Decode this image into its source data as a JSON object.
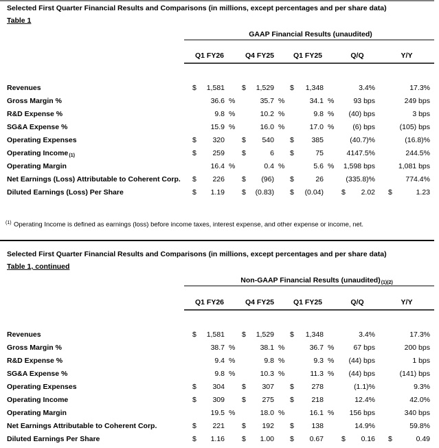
{
  "sections": [
    {
      "title": "Selected First Quarter Financial Results and Comparisons (in millions, except percentages and per share data)",
      "table_label": "Table 1",
      "group_header": "GAAP Financial Results (unaudited)",
      "columns": [
        "Q1 FY26",
        "Q4 FY25",
        "Q1 FY25",
        "Q/Q",
        "Y/Y"
      ],
      "rows": [
        {
          "label": "Revenues",
          "cells": [
            {
              "currency": "$",
              "value": "1,581"
            },
            {
              "currency": "$",
              "value": "1,529"
            },
            {
              "currency": "$",
              "value": "1,348"
            },
            {
              "value": "3.4%"
            },
            {
              "value": "17.3%"
            }
          ]
        },
        {
          "label": "Gross Margin %",
          "cells": [
            {
              "value": "36.6",
              "suffix": "%"
            },
            {
              "value": "35.7",
              "suffix": "%"
            },
            {
              "value": "34.1",
              "suffix": "%"
            },
            {
              "value": "93 bps"
            },
            {
              "value": "249 bps"
            }
          ]
        },
        {
          "label": "R&D Expense %",
          "cells": [
            {
              "value": "9.8",
              "suffix": "%"
            },
            {
              "value": "10.2",
              "suffix": "%"
            },
            {
              "value": "9.8",
              "suffix": "%"
            },
            {
              "value": "(40) bps"
            },
            {
              "value": "3 bps"
            }
          ]
        },
        {
          "label": "SG&A Expense %",
          "cells": [
            {
              "value": "15.9",
              "suffix": "%"
            },
            {
              "value": "16.0",
              "suffix": "%"
            },
            {
              "value": "17.0",
              "suffix": "%"
            },
            {
              "value": "(6) bps"
            },
            {
              "value": "(105) bps"
            }
          ]
        },
        {
          "label": "Operating Expenses",
          "cells": [
            {
              "currency": "$",
              "value": "320"
            },
            {
              "currency": "$",
              "value": "540"
            },
            {
              "currency": "$",
              "value": "385"
            },
            {
              "value": "(40.7)%"
            },
            {
              "value": "(16.8)%"
            }
          ]
        },
        {
          "label": "Operating Income",
          "label_note": "(1)",
          "cells": [
            {
              "currency": "$",
              "value": "259"
            },
            {
              "currency": "$",
              "value": "6"
            },
            {
              "currency": "$",
              "value": "75"
            },
            {
              "value": "4147.5%"
            },
            {
              "value": "244.5%"
            }
          ]
        },
        {
          "label": "Operating Margin",
          "cells": [
            {
              "value": "16.4",
              "suffix": "%"
            },
            {
              "value": "0.4",
              "suffix": "%"
            },
            {
              "value": "5.6",
              "suffix": "%"
            },
            {
              "value": "1,598 bps"
            },
            {
              "value": "1,081 bps"
            }
          ]
        },
        {
          "label": "Net Earnings (Loss) Attributable to Coherent Corp.",
          "cells": [
            {
              "currency": "$",
              "value": "226"
            },
            {
              "currency": "$",
              "value": "(96)"
            },
            {
              "currency": "$",
              "value": "26"
            },
            {
              "value": "(335.8)%"
            },
            {
              "value": "774.4%"
            }
          ]
        },
        {
          "label": "Diluted Earnings (Loss) Per Share",
          "cells": [
            {
              "currency": "$",
              "value": "1.19"
            },
            {
              "currency": "$",
              "value": "(0.83)"
            },
            {
              "currency": "$",
              "value": "(0.04)"
            },
            {
              "currency": "$",
              "value": "2.02"
            },
            {
              "currency": "$",
              "value": "1.23"
            }
          ]
        }
      ]
    },
    {
      "title": "Selected First Quarter Financial Results and Comparisons (in millions, except percentages and per share data)",
      "table_label": "Table 1, continued",
      "group_header": "Non-GAAP Financial Results (unaudited)",
      "group_note": "(1)(2)",
      "columns": [
        "Q1 FY26",
        "Q4 FY25",
        "Q1 FY25",
        "Q/Q",
        "Y/Y"
      ],
      "rows": [
        {
          "label": "Revenues",
          "cells": [
            {
              "currency": "$",
              "value": "1,581"
            },
            {
              "currency": "$",
              "value": "1,529"
            },
            {
              "currency": "$",
              "value": "1,348"
            },
            {
              "value": "3.4%"
            },
            {
              "value": "17.3%"
            }
          ]
        },
        {
          "label": "Gross Margin %",
          "cells": [
            {
              "value": "38.7",
              "suffix": "%"
            },
            {
              "value": "38.1",
              "suffix": "%"
            },
            {
              "value": "36.7",
              "suffix": "%"
            },
            {
              "value": "67 bps"
            },
            {
              "value": "200 bps"
            }
          ]
        },
        {
          "label": "R&D Expense %",
          "cells": [
            {
              "value": "9.4",
              "suffix": "%"
            },
            {
              "value": "9.8",
              "suffix": "%"
            },
            {
              "value": "9.3",
              "suffix": "%"
            },
            {
              "value": "(44) bps"
            },
            {
              "value": "1 bps"
            }
          ]
        },
        {
          "label": "SG&A Expense %",
          "cells": [
            {
              "value": "9.8",
              "suffix": "%"
            },
            {
              "value": "10.3",
              "suffix": "%"
            },
            {
              "value": "11.3",
              "suffix": "%"
            },
            {
              "value": "(44) bps"
            },
            {
              "value": "(141) bps"
            }
          ]
        },
        {
          "label": "Operating Expenses",
          "cells": [
            {
              "currency": "$",
              "value": "304"
            },
            {
              "currency": "$",
              "value": "307"
            },
            {
              "currency": "$",
              "value": "278"
            },
            {
              "value": "(1.1)%"
            },
            {
              "value": "9.3%"
            }
          ]
        },
        {
          "label": "Operating Income",
          "cells": [
            {
              "currency": "$",
              "value": "309"
            },
            {
              "currency": "$",
              "value": "275"
            },
            {
              "currency": "$",
              "value": "218"
            },
            {
              "value": "12.4%"
            },
            {
              "value": "42.0%"
            }
          ]
        },
        {
          "label": "Operating Margin",
          "cells": [
            {
              "value": "19.5",
              "suffix": "%"
            },
            {
              "value": "18.0",
              "suffix": "%"
            },
            {
              "value": "16.1",
              "suffix": "%"
            },
            {
              "value": "156 bps"
            },
            {
              "value": "340 bps"
            }
          ]
        },
        {
          "label": "Net Earnings Attributable to Coherent Corp.",
          "cells": [
            {
              "currency": "$",
              "value": "221"
            },
            {
              "currency": "$",
              "value": "192"
            },
            {
              "currency": "$",
              "value": "138"
            },
            {
              "value": "14.9%"
            },
            {
              "value": "59.8%"
            }
          ]
        },
        {
          "label": "Diluted Earnings Per Share",
          "cells": [
            {
              "currency": "$",
              "value": "1.16"
            },
            {
              "currency": "$",
              "value": "1.00"
            },
            {
              "currency": "$",
              "value": "0.67"
            },
            {
              "currency": "$",
              "value": "0.16"
            },
            {
              "currency": "$",
              "value": "0.49"
            }
          ]
        }
      ]
    }
  ],
  "footnote": {
    "marker": "(1)",
    "text": "Operating Income is defined as earnings (loss) before income taxes, interest expense, and other expense or income, net."
  }
}
